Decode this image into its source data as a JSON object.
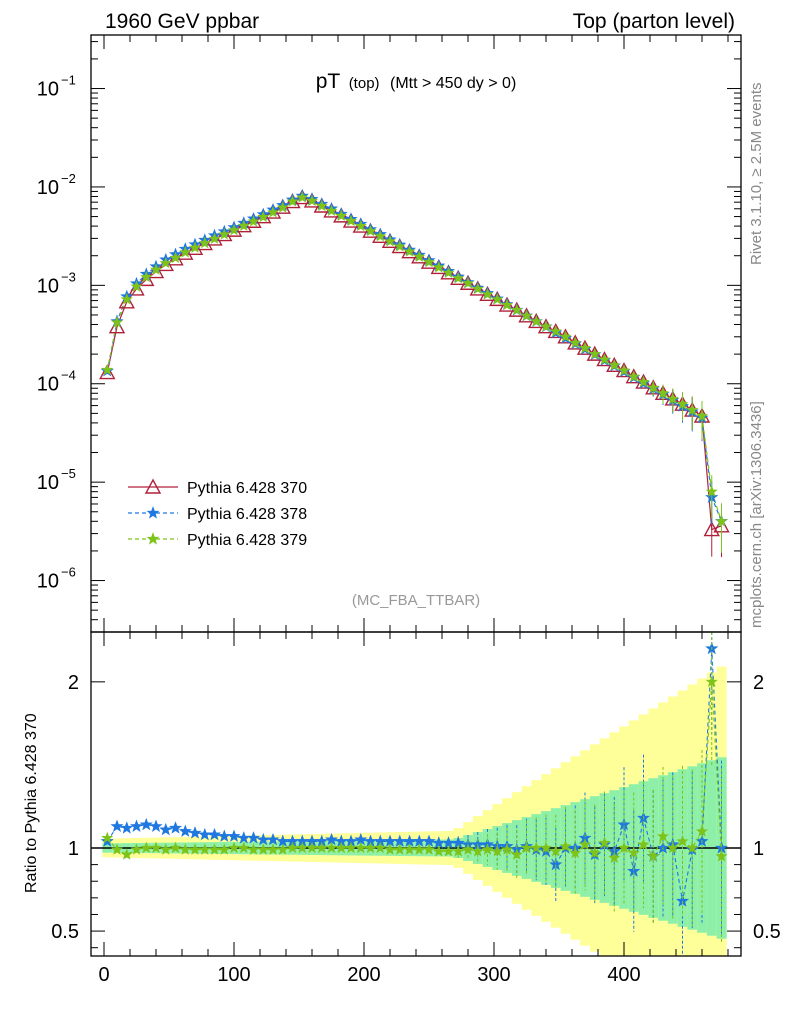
{
  "header": {
    "left": "1960 GeV ppbar",
    "right": "Top (parton level)"
  },
  "plot_title": {
    "main": "pT",
    "sub1": "(top)",
    "sub2": "(Mtt > 450 dy > 0)"
  },
  "side_labels": {
    "rivet": "Rivet 3.1.10, ≥ 2.5M events",
    "mcplots": "mcplots.cern.ch [arXiv:1306.3436]"
  },
  "analysis_label": "(MC_FBA_TTBAR)",
  "ratio_ylabel": "Ratio to Pythia 6.428 370",
  "legend": [
    "Pythia 6.428 370",
    "Pythia 6.428 378",
    "Pythia 6.428 379"
  ],
  "colors": {
    "p370": "#b0203a",
    "p378": "#1f78e0",
    "p379": "#7ec31a",
    "band_inner": "#8ef0a8",
    "band_outer": "#ffff99"
  },
  "chart_data": [
    {
      "type": "line",
      "title": "pT (top) (Mtt > 450 dy > 0)",
      "yscale": "log",
      "xlim": [
        -10,
        490
      ],
      "ylim": [
        3e-07,
        0.35
      ],
      "y_ticks": [
        "10^-6",
        "10^-5",
        "10^-4",
        "10^-3",
        "10^-2",
        "10^-1"
      ],
      "x": [
        2.5,
        10,
        17.5,
        25,
        32.5,
        40,
        47.5,
        55,
        62.5,
        70,
        77.5,
        85,
        92.5,
        100,
        107.5,
        115,
        122.5,
        130,
        137.5,
        145,
        152.5,
        160,
        167.5,
        175,
        182.5,
        190,
        197.5,
        205,
        212.5,
        220,
        227.5,
        235,
        242.5,
        250,
        257.5,
        265,
        272.5,
        280,
        287.5,
        295,
        302.5,
        310,
        317.5,
        325,
        332.5,
        340,
        347.5,
        355,
        362.5,
        370,
        377.5,
        385,
        392.5,
        400,
        407.5,
        415,
        422.5,
        430,
        437.5,
        445,
        452.5,
        460,
        467.5,
        475
      ],
      "series": [
        {
          "name": "Pythia 6.428 370",
          "values": [
            0.00013,
            0.00038,
            0.00068,
            0.00092,
            0.00115,
            0.00138,
            0.00163,
            0.00186,
            0.00212,
            0.00238,
            0.00266,
            0.00296,
            0.00328,
            0.00364,
            0.00404,
            0.00448,
            0.00498,
            0.00555,
            0.00622,
            0.0071,
            0.0078,
            0.0072,
            0.0064,
            0.0057,
            0.00508,
            0.0045,
            0.004,
            0.00355,
            0.00315,
            0.0028,
            0.00248,
            0.0022,
            0.00195,
            0.00172,
            0.00152,
            0.00134,
            0.00118,
            0.00105,
            0.00092,
            0.00081,
            0.00072,
            0.00063,
            0.00056,
            0.00049,
            0.00043,
            0.00038,
            0.00034,
            0.0003,
            0.00026,
            0.00023,
            0.0002,
            0.000176,
            0.000154,
            0.000136,
            0.000118,
            0.000104,
            9.1e-05,
            8e-05,
            7e-05,
            6.2e-05,
            5.4e-05,
            4.7e-05,
            3.3e-06,
            3.6e-06
          ]
        },
        {
          "name": "Pythia 6.428 378",
          "values": [
            0.000135,
            0.00043,
            0.00077,
            0.00104,
            0.0013,
            0.00155,
            0.00182,
            0.00206,
            0.00234,
            0.0026,
            0.00288,
            0.0032,
            0.00352,
            0.00388,
            0.0043,
            0.00475,
            0.00525,
            0.00585,
            0.0065,
            0.0074,
            0.0081,
            0.0075,
            0.0067,
            0.006,
            0.0053,
            0.0047,
            0.0042,
            0.0037,
            0.0033,
            0.00292,
            0.00258,
            0.00229,
            0.00203,
            0.00179,
            0.00158,
            0.00139,
            0.00122,
            0.00107,
            0.00094,
            0.00083,
            0.00073,
            0.00064,
            0.00056,
            0.00049,
            0.00043,
            0.00038,
            0.00033,
            0.00029,
            0.000255,
            0.000225,
            0.000198,
            0.000173,
            0.000152,
            0.000133,
            0.000116,
            0.000101,
            8.9e-05,
            7.8e-05,
            6.8e-05,
            5.9e-05,
            5.2e-05,
            4.5e-05,
            7e-06,
            4e-06
          ]
        },
        {
          "name": "Pythia 6.428 379",
          "values": [
            0.000138,
            0.00042,
            0.00072,
            0.00097,
            0.00121,
            0.00144,
            0.00168,
            0.0019,
            0.00216,
            0.00241,
            0.00268,
            0.00297,
            0.00328,
            0.00363,
            0.00402,
            0.00445,
            0.00494,
            0.0055,
            0.00616,
            0.0071,
            0.0078,
            0.0072,
            0.0064,
            0.0057,
            0.00508,
            0.0045,
            0.004,
            0.00355,
            0.00315,
            0.0028,
            0.00248,
            0.0022,
            0.00195,
            0.00172,
            0.00152,
            0.00134,
            0.00118,
            0.00105,
            0.00092,
            0.00081,
            0.00072,
            0.00063,
            0.00056,
            0.00049,
            0.00043,
            0.00038,
            0.00034,
            0.0003,
            0.00026,
            0.00023,
            0.0002,
            0.000176,
            0.000154,
            0.000136,
            0.000118,
            0.000104,
            9.1e-05,
            8e-05,
            7e-05,
            6.2e-05,
            5.4e-05,
            4.7e-05,
            8e-06,
            4e-06
          ]
        }
      ]
    },
    {
      "type": "line",
      "ylabel": "Ratio to Pythia 6.428 370",
      "xlim": [
        -10,
        490
      ],
      "ylim": [
        0.35,
        2.3
      ],
      "x_ticks": [
        0,
        100,
        200,
        300,
        400
      ],
      "y_ticks": [
        0.5,
        1,
        2
      ],
      "x": [
        2.5,
        10,
        17.5,
        25,
        32.5,
        40,
        47.5,
        55,
        62.5,
        70,
        77.5,
        85,
        92.5,
        100,
        107.5,
        115,
        122.5,
        130,
        137.5,
        145,
        152.5,
        160,
        167.5,
        175,
        182.5,
        190,
        197.5,
        205,
        212.5,
        220,
        227.5,
        235,
        242.5,
        250,
        257.5,
        265,
        272.5,
        280,
        287.5,
        295,
        302.5,
        310,
        317.5,
        325,
        332.5,
        340,
        347.5,
        355,
        362.5,
        370,
        377.5,
        385,
        392.5,
        400,
        407.5,
        415,
        422.5,
        430,
        437.5,
        445,
        452.5,
        460,
        467.5,
        475
      ],
      "series": [
        {
          "name": "Pythia 6.428 378",
          "values": [
            1.04,
            1.13,
            1.12,
            1.13,
            1.14,
            1.13,
            1.11,
            1.12,
            1.1,
            1.09,
            1.08,
            1.08,
            1.07,
            1.07,
            1.06,
            1.06,
            1.05,
            1.05,
            1.04,
            1.04,
            1.04,
            1.04,
            1.04,
            1.05,
            1.04,
            1.04,
            1.05,
            1.04,
            1.04,
            1.04,
            1.04,
            1.04,
            1.04,
            1.04,
            1.03,
            1.03,
            1.03,
            1.02,
            1.02,
            1.02,
            1.01,
            1.01,
            0.99,
            1.01,
            0.99,
            0.98,
            0.9,
            1.0,
            1.0,
            1.06,
            0.96,
            1.02,
            0.98,
            1.14,
            0.86,
            1.18,
            0.95,
            1.0,
            1.02,
            0.68,
            0.99,
            1.04,
            2.2,
            1.0
          ]
        },
        {
          "name": "Pythia 6.428 379",
          "values": [
            1.06,
            0.99,
            0.96,
            0.99,
            1.0,
            1.0,
            0.99,
            1.0,
            0.99,
            0.99,
            0.99,
            0.99,
            0.99,
            1.0,
            1.0,
            0.99,
            0.99,
            0.99,
            0.99,
            1.0,
            1.0,
            1.0,
            1.0,
            1.0,
            1.0,
            1.0,
            1.0,
            1.0,
            1.0,
            0.99,
            0.99,
            0.99,
            0.99,
            0.99,
            0.98,
            0.98,
            0.98,
            0.99,
            0.98,
            0.99,
            0.98,
            0.99,
            0.96,
            1.0,
            1.0,
            1.0,
            0.98,
            1.01,
            0.97,
            1.02,
            0.97,
            1.03,
            0.94,
            1.0,
            0.97,
            1.02,
            0.95,
            1.07,
            1.0,
            1.04,
            1.0,
            1.1,
            2.0,
            0.95
          ]
        }
      ]
    }
  ]
}
